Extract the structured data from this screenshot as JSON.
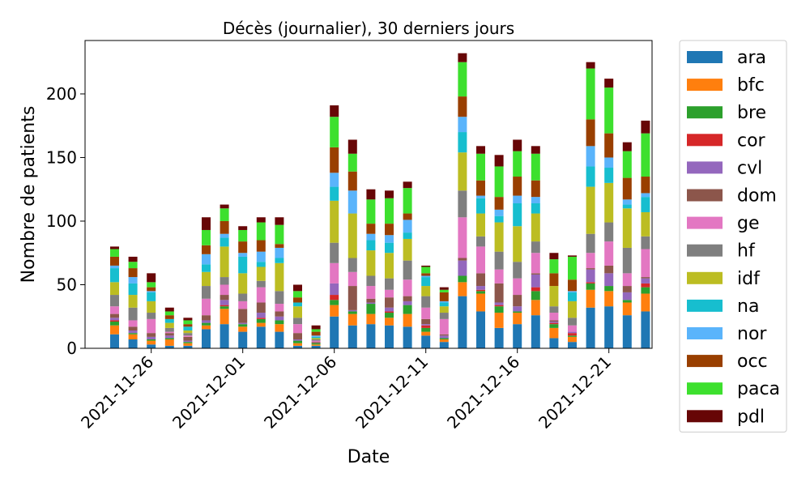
{
  "chart_data": {
    "type": "bar",
    "stacked": true,
    "title": "Décès (journalier), 30 derniers jours",
    "xlabel": "Date",
    "ylabel": "Nombre de patients",
    "ylim": [
      0,
      242
    ],
    "yticks": [
      0,
      50,
      100,
      150,
      200
    ],
    "xtick_labels": [
      {
        "index": 2,
        "label": "2021-11-26"
      },
      {
        "index": 7,
        "label": "2021-12-01"
      },
      {
        "index": 12,
        "label": "2021-12-06"
      },
      {
        "index": 17,
        "label": "2021-12-11"
      },
      {
        "index": 22,
        "label": "2021-12-16"
      },
      {
        "index": 27,
        "label": "2021-12-21"
      }
    ],
    "grid": false,
    "legend_position": "outside-right",
    "categories": [
      "2021-11-24",
      "2021-11-25",
      "2021-11-26",
      "2021-11-27",
      "2021-11-28",
      "2021-11-29",
      "2021-11-30",
      "2021-12-01",
      "2021-12-02",
      "2021-12-03",
      "2021-12-04",
      "2021-12-05",
      "2021-12-06",
      "2021-12-07",
      "2021-12-08",
      "2021-12-09",
      "2021-12-10",
      "2021-12-11",
      "2021-12-12",
      "2021-12-13",
      "2021-12-14",
      "2021-12-15",
      "2021-12-16",
      "2021-12-17",
      "2021-12-18",
      "2021-12-19",
      "2021-12-20",
      "2021-12-21",
      "2021-12-22",
      "2021-12-23"
    ],
    "series": [
      {
        "name": "ara",
        "color": "#1f77b4",
        "values": [
          11,
          7,
          3,
          2,
          2,
          15,
          19,
          13,
          17,
          13,
          2,
          2,
          25,
          18,
          19,
          18,
          17,
          10,
          5,
          41,
          29,
          16,
          19,
          26,
          8,
          5,
          32,
          33,
          26,
          29
        ]
      },
      {
        "name": "bfc",
        "color": "#ff7f0e",
        "values": [
          7,
          4,
          3,
          5,
          2,
          3,
          12,
          4,
          3,
          6,
          2,
          1,
          9,
          9,
          8,
          6,
          10,
          3,
          2,
          11,
          14,
          12,
          9,
          12,
          8,
          4,
          14,
          12,
          10,
          14
        ]
      },
      {
        "name": "bre",
        "color": "#2ca02c",
        "values": [
          3,
          1,
          1,
          1,
          1,
          2,
          2,
          2,
          3,
          3,
          2,
          1,
          4,
          2,
          8,
          4,
          7,
          3,
          1,
          5,
          2,
          5,
          1,
          7,
          3,
          1,
          5,
          4,
          2,
          5
        ]
      },
      {
        "name": "cor",
        "color": "#d62728",
        "values": [
          1,
          0,
          0,
          0,
          0,
          0,
          1,
          0,
          1,
          0,
          0,
          0,
          4,
          0,
          0,
          1,
          0,
          2,
          0,
          0,
          1,
          1,
          0,
          3,
          1,
          2,
          1,
          0,
          0,
          3
        ]
      },
      {
        "name": "cvl",
        "color": "#9467bd",
        "values": [
          2,
          2,
          2,
          2,
          1,
          2,
          4,
          1,
          4,
          3,
          1,
          0,
          9,
          1,
          1,
          3,
          3,
          1,
          2,
          12,
          3,
          2,
          4,
          10,
          1,
          1,
          10,
          10,
          6,
          4
        ]
      },
      {
        "name": "dom",
        "color": "#8c564b",
        "values": [
          3,
          3,
          3,
          2,
          3,
          4,
          4,
          11,
          8,
          4,
          5,
          1,
          0,
          19,
          3,
          8,
          4,
          4,
          1,
          2,
          10,
          15,
          9,
          1,
          1,
          0,
          1,
          6,
          5,
          1
        ]
      },
      {
        "name": "ge",
        "color": "#e377c2",
        "values": [
          6,
          5,
          11,
          1,
          1,
          13,
          8,
          6,
          12,
          6,
          7,
          1,
          16,
          11,
          10,
          6,
          13,
          9,
          12,
          32,
          21,
          11,
          13,
          16,
          6,
          5,
          12,
          19,
          10,
          22
        ]
      },
      {
        "name": "hf",
        "color": "#7f7f7f",
        "values": [
          9,
          10,
          5,
          3,
          2,
          10,
          6,
          6,
          5,
          10,
          5,
          1,
          16,
          11,
          8,
          9,
          15,
          9,
          5,
          21,
          8,
          14,
          13,
          9,
          5,
          6,
          15,
          15,
          20,
          10
        ]
      },
      {
        "name": "idf",
        "color": "#bcbd22",
        "values": [
          10,
          10,
          9,
          4,
          2,
          11,
          24,
          16,
          11,
          22,
          9,
          1,
          33,
          35,
          20,
          20,
          17,
          8,
          5,
          30,
          18,
          23,
          28,
          22,
          16,
          13,
          37,
          31,
          31,
          19
        ]
      },
      {
        "name": "na",
        "color": "#17becf",
        "values": [
          11,
          9,
          7,
          3,
          3,
          6,
          7,
          13,
          4,
          4,
          3,
          1,
          11,
          0,
          8,
          8,
          5,
          7,
          3,
          16,
          12,
          5,
          18,
          8,
          0,
          7,
          16,
          12,
          3,
          12
        ]
      },
      {
        "name": "nor",
        "color": "#5ab4fb",
        "values": [
          2,
          5,
          1,
          0,
          0,
          8,
          3,
          3,
          8,
          8,
          0,
          1,
          11,
          18,
          5,
          6,
          10,
          1,
          1,
          12,
          2,
          5,
          6,
          5,
          0,
          1,
          16,
          8,
          4,
          3
        ]
      },
      {
        "name": "occ",
        "color": "#993f00",
        "values": [
          7,
          7,
          3,
          3,
          2,
          7,
          10,
          9,
          9,
          3,
          4,
          3,
          20,
          15,
          8,
          9,
          5,
          2,
          7,
          16,
          12,
          10,
          15,
          13,
          10,
          9,
          21,
          19,
          17,
          13
        ]
      },
      {
        "name": "paca",
        "color": "#3de02e",
        "values": [
          6,
          5,
          4,
          3,
          3,
          12,
          10,
          9,
          14,
          15,
          5,
          2,
          24,
          14,
          19,
          20,
          20,
          5,
          2,
          27,
          21,
          24,
          20,
          21,
          11,
          18,
          40,
          36,
          21,
          34
        ]
      },
      {
        "name": "pdl",
        "color": "#670606",
        "values": [
          2,
          4,
          7,
          3,
          2,
          10,
          3,
          3,
          4,
          6,
          5,
          3,
          9,
          11,
          8,
          6,
          5,
          1,
          2,
          7,
          6,
          9,
          9,
          6,
          5,
          1,
          5,
          7,
          7,
          10
        ]
      }
    ]
  }
}
